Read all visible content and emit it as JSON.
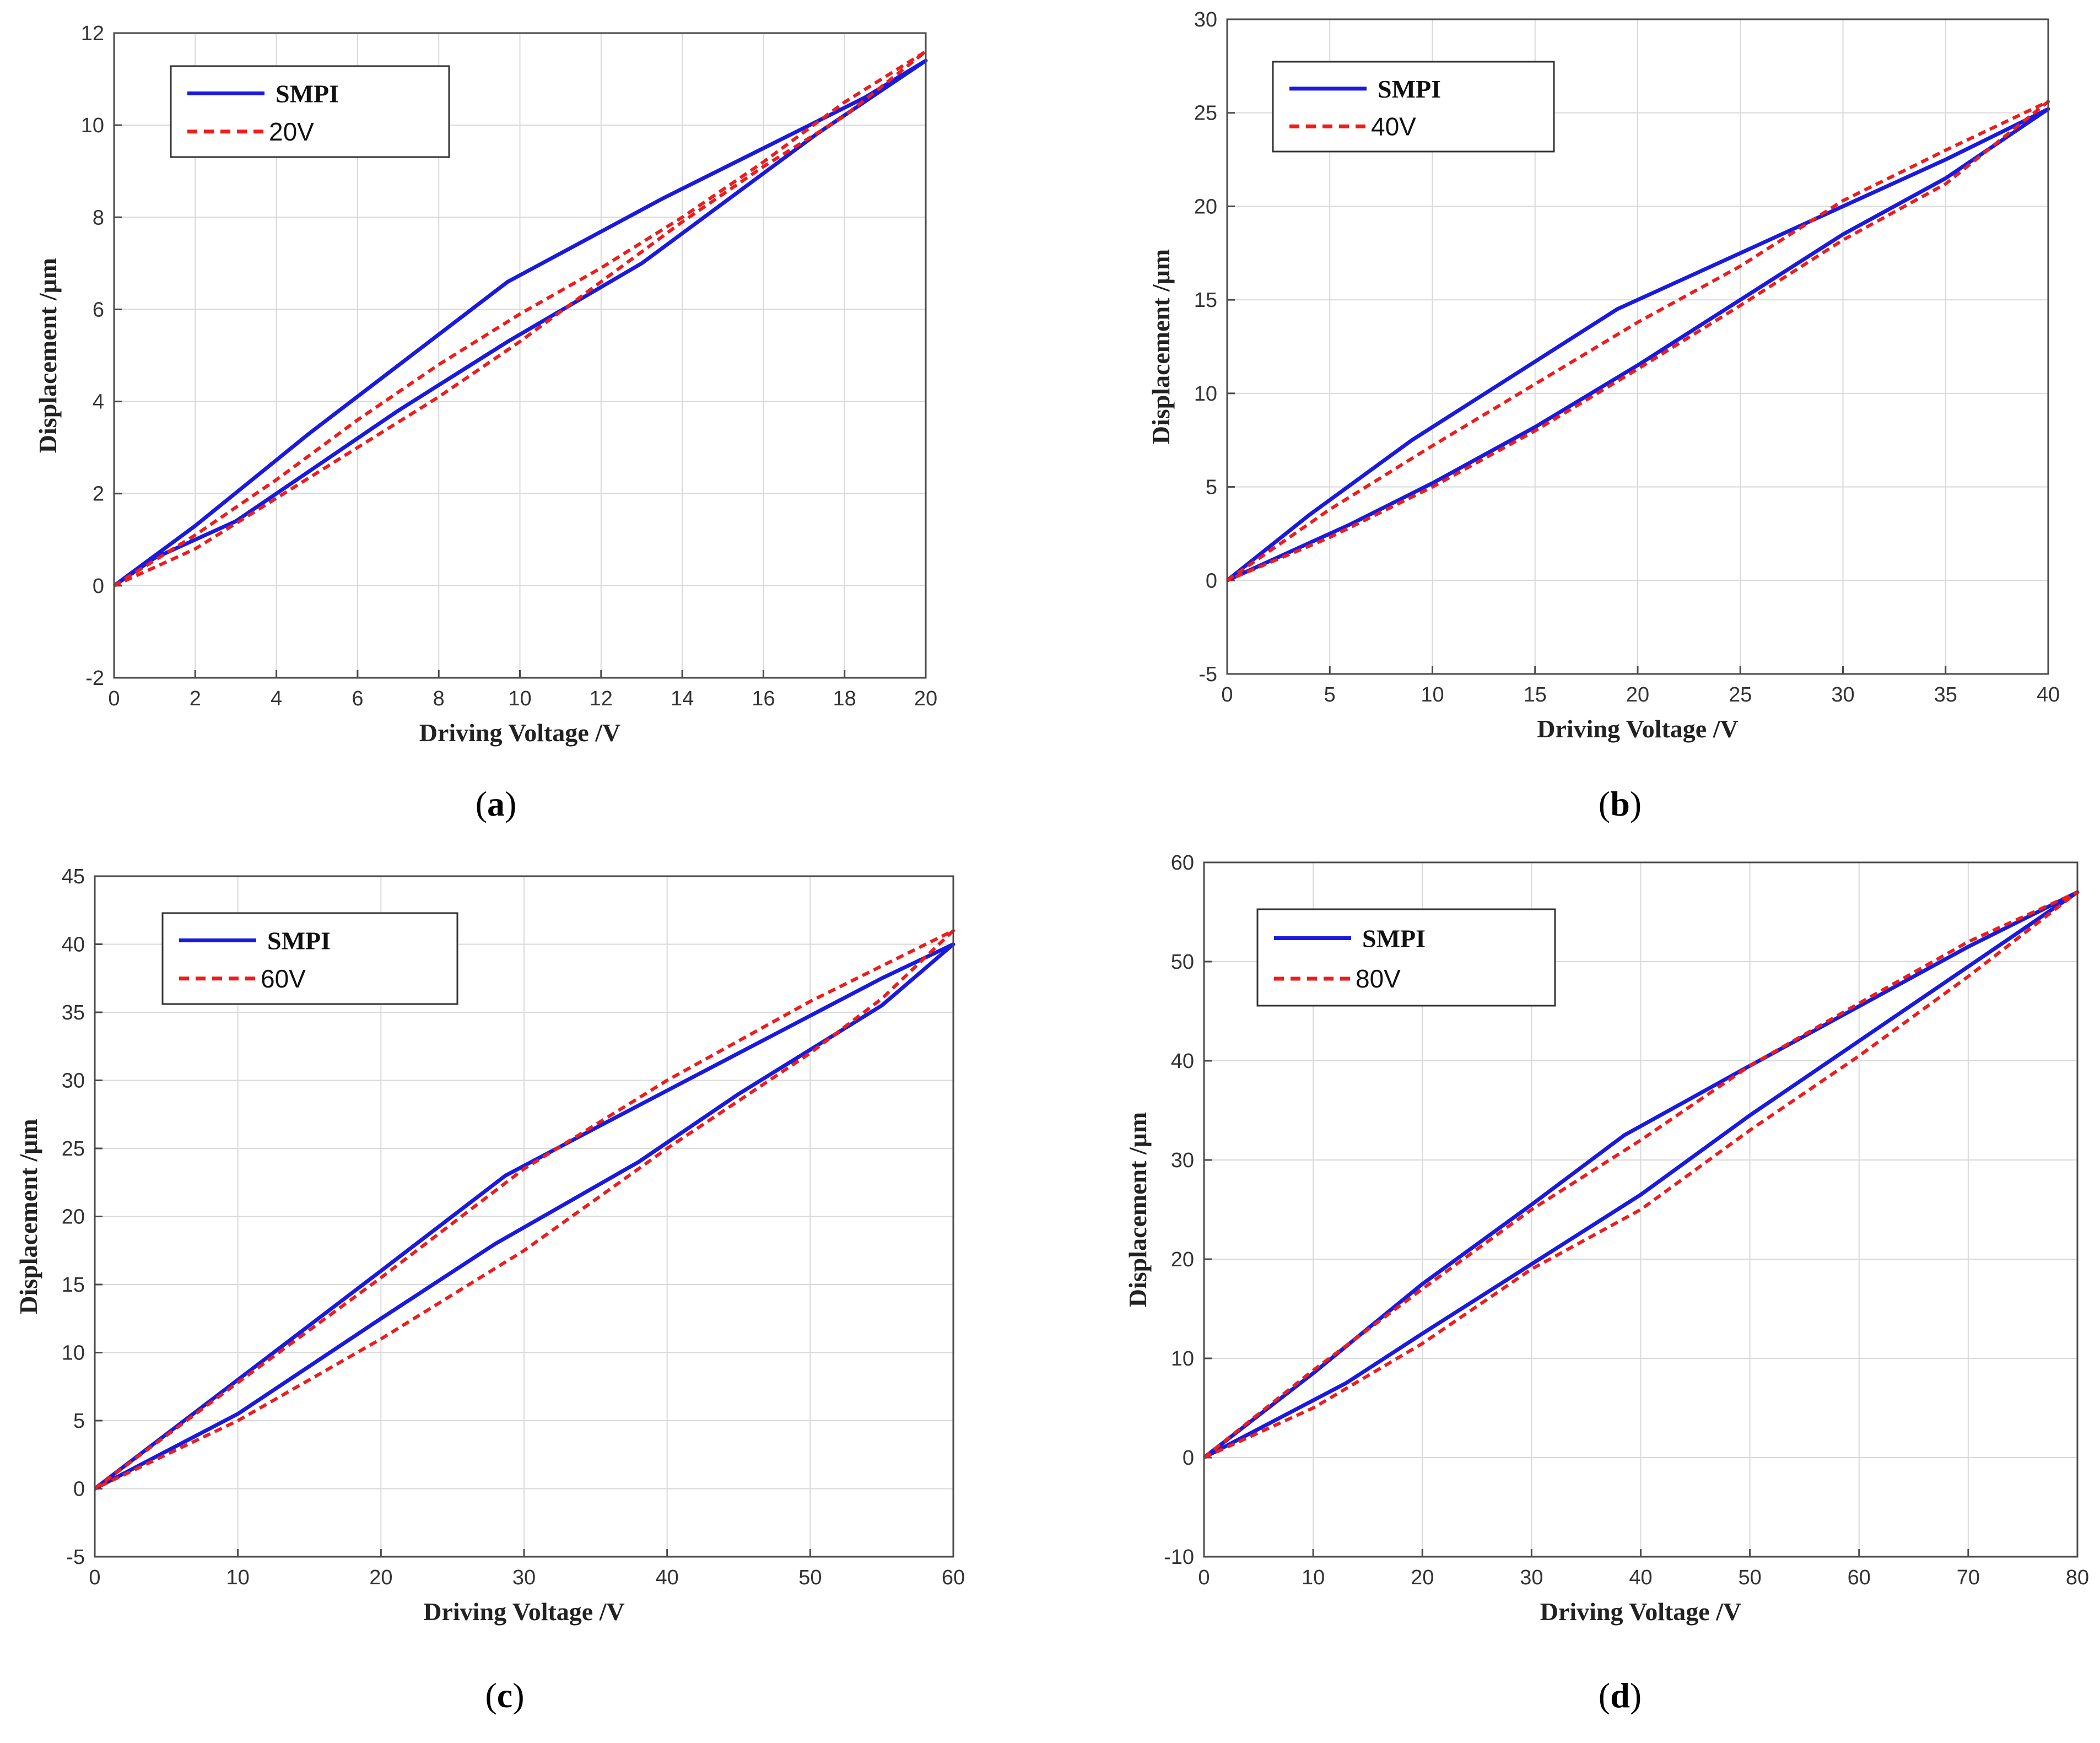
{
  "colors": {
    "smpi": "#1a1adf",
    "measured": "#ee1c1c"
  },
  "chart_data": [
    {
      "type": "line",
      "caption_letter": "a",
      "caption_open": "(",
      "caption_close": ")",
      "xlabel": "Driving Voltage  /V",
      "ylabel": "Displacement  /μm",
      "xlim": [
        0,
        20
      ],
      "ylim": [
        -2,
        12
      ],
      "xticks": [
        0,
        2,
        4,
        6,
        8,
        10,
        12,
        14,
        16,
        18,
        20
      ],
      "yticks": [
        -2,
        0,
        2,
        4,
        6,
        8,
        10,
        12
      ],
      "legend": [
        "SMPI",
        "20V"
      ],
      "series": [
        {
          "name": "SMPI",
          "style": "solid",
          "x": [
            0,
            2,
            4.8,
            9.7,
            13.5,
            18.5,
            20,
            17.3,
            13,
            9.7,
            7,
            3,
            1,
            0
          ],
          "y": [
            0,
            1.3,
            3.3,
            6.6,
            8.4,
            10.6,
            11.4,
            9.8,
            7.0,
            5.3,
            3.8,
            1.4,
            0.6,
            0
          ]
        },
        {
          "name": "20V",
          "style": "dashed",
          "x": [
            0,
            2,
            4,
            6,
            8,
            10,
            12,
            14,
            16,
            18,
            20,
            18,
            16,
            14,
            12,
            10,
            8,
            6,
            4,
            2,
            0
          ],
          "y": [
            0,
            1.1,
            2.3,
            3.6,
            4.8,
            5.9,
            6.9,
            8.0,
            9.2,
            10.5,
            11.6,
            10.2,
            9.1,
            7.9,
            6.6,
            5.3,
            4.1,
            3.0,
            1.9,
            0.8,
            0
          ]
        }
      ]
    },
    {
      "type": "line",
      "caption_letter": "b",
      "caption_open": "(",
      "caption_close": ")",
      "xlabel": "Driving Voltage  /V",
      "ylabel": "Displacement  /μm",
      "xlim": [
        0,
        40
      ],
      "ylim": [
        -5,
        30
      ],
      "xticks": [
        0,
        5,
        10,
        15,
        20,
        25,
        30,
        35,
        40
      ],
      "yticks": [
        -5,
        0,
        5,
        10,
        15,
        20,
        25,
        30
      ],
      "legend": [
        "SMPI",
        "40V"
      ],
      "series": [
        {
          "name": "SMPI",
          "style": "solid",
          "x": [
            0,
            4,
            9,
            14,
            19,
            24,
            30,
            35,
            40,
            35,
            30,
            25,
            20,
            15,
            10,
            6,
            0
          ],
          "y": [
            0,
            3.5,
            7.5,
            11.0,
            14.5,
            17.0,
            20.0,
            22.5,
            25.2,
            21.5,
            18.5,
            15.0,
            11.5,
            8.2,
            5.2,
            3.0,
            0
          ]
        },
        {
          "name": "40V",
          "style": "dashed",
          "x": [
            0,
            5,
            10,
            15,
            20,
            25,
            30,
            35,
            40,
            35,
            30,
            25,
            20,
            15,
            10,
            5,
            0
          ],
          "y": [
            0,
            3.8,
            7.2,
            10.5,
            13.8,
            16.8,
            20.3,
            23.0,
            25.6,
            21.2,
            18.2,
            14.7,
            11.3,
            8.0,
            5.0,
            2.3,
            0
          ]
        }
      ]
    },
    {
      "type": "line",
      "caption_letter": "c",
      "caption_open": "(",
      "caption_close": ")",
      "xlabel": "Driving Voltage  /V",
      "ylabel": "Displacement  /μm",
      "xlim": [
        0,
        60
      ],
      "ylim": [
        -5,
        45
      ],
      "xticks": [
        0,
        10,
        20,
        30,
        40,
        50,
        60
      ],
      "yticks": [
        -5,
        0,
        5,
        10,
        15,
        20,
        25,
        30,
        35,
        40,
        45
      ],
      "legend": [
        "SMPI",
        "60V"
      ],
      "series": [
        {
          "name": "SMPI",
          "style": "solid",
          "x": [
            0,
            10,
            20,
            28.7,
            35,
            45,
            55,
            60,
            55,
            45,
            38,
            28,
            20,
            10,
            0
          ],
          "y": [
            0,
            8.0,
            16.0,
            23.0,
            26.5,
            32.0,
            37.5,
            40.0,
            35.5,
            29.0,
            24.0,
            18.0,
            12.5,
            5.5,
            0
          ]
        },
        {
          "name": "60V",
          "style": "dashed",
          "x": [
            0,
            10,
            20,
            30,
            40,
            50,
            60,
            55,
            50,
            40,
            30,
            20,
            10,
            0
          ],
          "y": [
            0,
            7.8,
            15.5,
            23.5,
            30.0,
            35.8,
            41.0,
            36.0,
            32.0,
            25.0,
            17.5,
            11.0,
            5.0,
            0
          ]
        }
      ]
    },
    {
      "type": "line",
      "caption_letter": "d",
      "caption_open": "(",
      "caption_close": ")",
      "xlabel": "Driving Voltage  /V",
      "ylabel": "Displacement  /μm",
      "xlim": [
        0,
        80
      ],
      "ylim": [
        -10,
        60
      ],
      "xticks": [
        0,
        10,
        20,
        30,
        40,
        50,
        60,
        70,
        80
      ],
      "yticks": [
        -10,
        0,
        10,
        20,
        30,
        40,
        50,
        60
      ],
      "legend": [
        "SMPI",
        "80V"
      ],
      "series": [
        {
          "name": "SMPI",
          "style": "solid",
          "x": [
            0,
            10,
            20,
            30,
            38.5,
            50,
            60,
            70,
            80,
            70,
            60,
            50,
            40,
            30,
            20,
            13,
            0
          ],
          "y": [
            0,
            8.5,
            17.5,
            25.5,
            32.5,
            39.5,
            45.5,
            51.5,
            57.0,
            49.5,
            42.0,
            34.5,
            26.5,
            19.5,
            12.5,
            7.5,
            0
          ]
        },
        {
          "name": "80V",
          "style": "dashed",
          "x": [
            0,
            10,
            20,
            30,
            40,
            50,
            60,
            70,
            80,
            70,
            60,
            50,
            40,
            30,
            20,
            10,
            0
          ],
          "y": [
            0,
            8.8,
            17.0,
            25.0,
            32.0,
            39.5,
            45.8,
            52.0,
            57.0,
            48.5,
            40.5,
            33.0,
            25.0,
            19.0,
            11.5,
            5.0,
            0
          ]
        }
      ]
    }
  ]
}
